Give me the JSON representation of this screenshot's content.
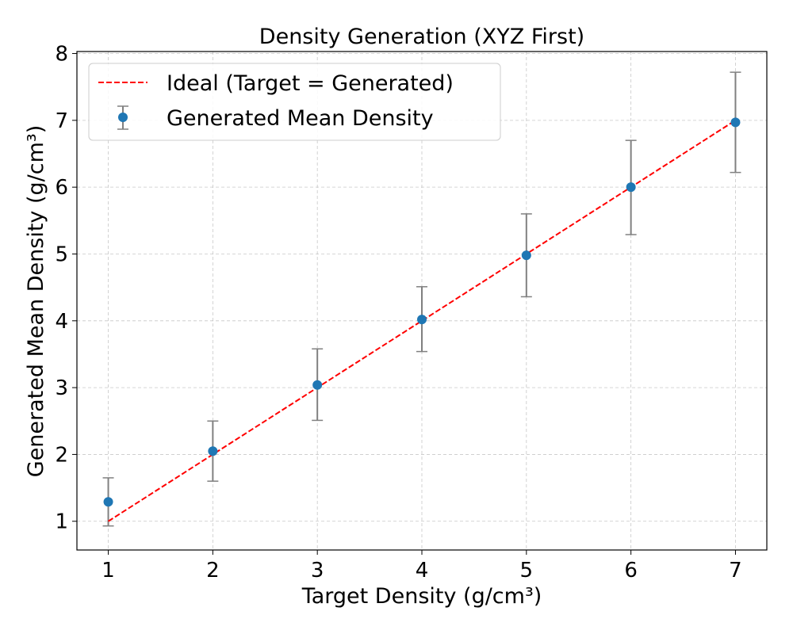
{
  "chart_data": {
    "type": "scatter",
    "title": "Density Generation (XYZ First)",
    "xlabel": "Target Density (g/cm³)",
    "ylabel": "Generated Mean Density (g/cm³)",
    "xlim": [
      0.7,
      7.3
    ],
    "ylim": [
      0.57,
      8.03
    ],
    "xticks": [
      1,
      2,
      3,
      4,
      5,
      6,
      7
    ],
    "yticks": [
      1,
      2,
      3,
      4,
      5,
      6,
      7,
      8
    ],
    "grid": true,
    "legend_position": "top-left",
    "series": [
      {
        "name": "Ideal (Target = Generated)",
        "kind": "line",
        "style": "dashed",
        "color": "#ff0000",
        "x": [
          1,
          7
        ],
        "y": [
          1,
          7
        ]
      },
      {
        "name": "Generated Mean Density",
        "kind": "errorbar",
        "color": "#1f77b4",
        "errorbar_color": "#808080",
        "x": [
          1,
          2,
          3,
          4,
          5,
          6,
          7
        ],
        "y": [
          1.29,
          2.05,
          3.04,
          4.02,
          4.98,
          6.0,
          6.97
        ],
        "y_lower": [
          0.93,
          1.6,
          2.51,
          3.54,
          4.36,
          5.29,
          6.22
        ],
        "y_upper": [
          1.65,
          2.5,
          3.58,
          4.51,
          5.6,
          6.7,
          7.72
        ]
      }
    ]
  }
}
